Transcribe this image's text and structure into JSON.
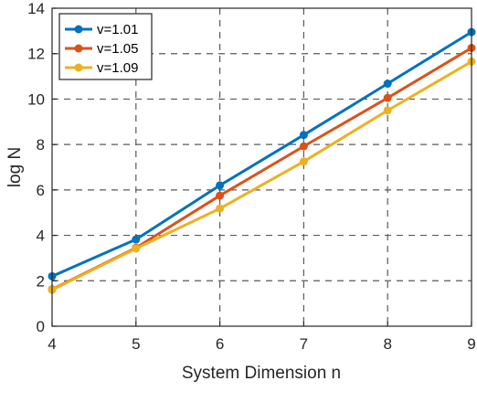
{
  "chart_data": {
    "type": "line",
    "title": "",
    "xlabel": "System Dimension n",
    "ylabel": "log N",
    "xlim": [
      4,
      9
    ],
    "ylim": [
      0,
      14
    ],
    "x": [
      4,
      5,
      6,
      7,
      8,
      9
    ],
    "x_ticks": [
      "4",
      "5",
      "6",
      "7",
      "8",
      "9"
    ],
    "y_ticks": [
      "0",
      "2",
      "4",
      "6",
      "8",
      "10",
      "12",
      "14"
    ],
    "grid": true,
    "legend_position": "top-left",
    "series": [
      {
        "name": "v=1.01",
        "color": "#0072BD",
        "values": [
          2.2,
          3.82,
          6.2,
          8.42,
          10.68,
          12.95
        ]
      },
      {
        "name": "v=1.05",
        "color": "#D95319",
        "values": [
          1.62,
          3.45,
          5.75,
          7.92,
          10.05,
          12.25
        ]
      },
      {
        "name": "v=1.09",
        "color": "#EDB120",
        "values": [
          1.6,
          3.42,
          5.18,
          7.25,
          9.5,
          11.65
        ]
      }
    ]
  }
}
